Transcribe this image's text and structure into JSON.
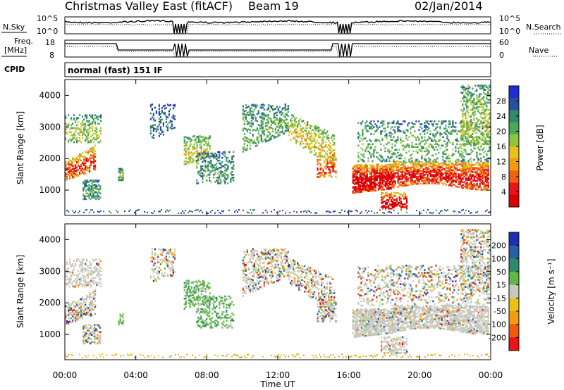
{
  "header": {
    "station": "Christmas Valley East (fitACF)",
    "beam": "Beam 19",
    "date": "02/Jan/2014"
  },
  "side_labels": {
    "nsky": "N.Sky",
    "nsearch": "N.Search",
    "freq": "Freq.",
    "freq_unit": "[MHz]",
    "nave": "Nave",
    "cpid": "CPID",
    "cpid_value": "normal (fast) 151 IF"
  },
  "top_axes": {
    "noise_ticks": [
      "10^5",
      "10^0"
    ],
    "freq_ticks": [
      "18",
      "8"
    ],
    "nave_ticks": [
      "60",
      "0"
    ]
  },
  "chart_data": [
    {
      "type": "heatmap",
      "name": "power",
      "ylabel": "Slant Range [km]",
      "y_ticks": [
        "4000",
        "3000",
        "2000",
        "1000"
      ],
      "ylim": [
        200,
        4500
      ],
      "colorbar_label": "Power [dB]",
      "colorbar_ticks": [
        "28",
        "24",
        "20",
        "16",
        "12",
        "8",
        "4"
      ],
      "colors": [
        "#1f2fd8",
        "#28509a",
        "#2f8a6a",
        "#4fa85a",
        "#8cc63f",
        "#e8c21a",
        "#f39a13",
        "#ef6010",
        "#e8141a",
        "#d80000"
      ]
    },
    {
      "type": "heatmap",
      "name": "velocity",
      "ylabel": "Slant Range [km]",
      "y_ticks": [
        "4000",
        "3000",
        "2000",
        "1000"
      ],
      "ylim": [
        200,
        4500
      ],
      "colorbar_label": "Velocity [m s⁻¹]",
      "colorbar_ticks": [
        "200",
        "100",
        "50",
        "15",
        "-15",
        "-50",
        "-100",
        "-200"
      ],
      "colors": [
        "#1f2fb0",
        "#2a5fa8",
        "#2f8a6a",
        "#62b846",
        "#c8c8bf",
        "#e8c21a",
        "#f39a13",
        "#ef5a10",
        "#e8141a"
      ]
    }
  ],
  "x_axis": {
    "ticks": [
      "00:00",
      "04:00",
      "08:00",
      "12:00",
      "16:00",
      "20:00",
      "00:00"
    ],
    "label": "Time UT"
  }
}
